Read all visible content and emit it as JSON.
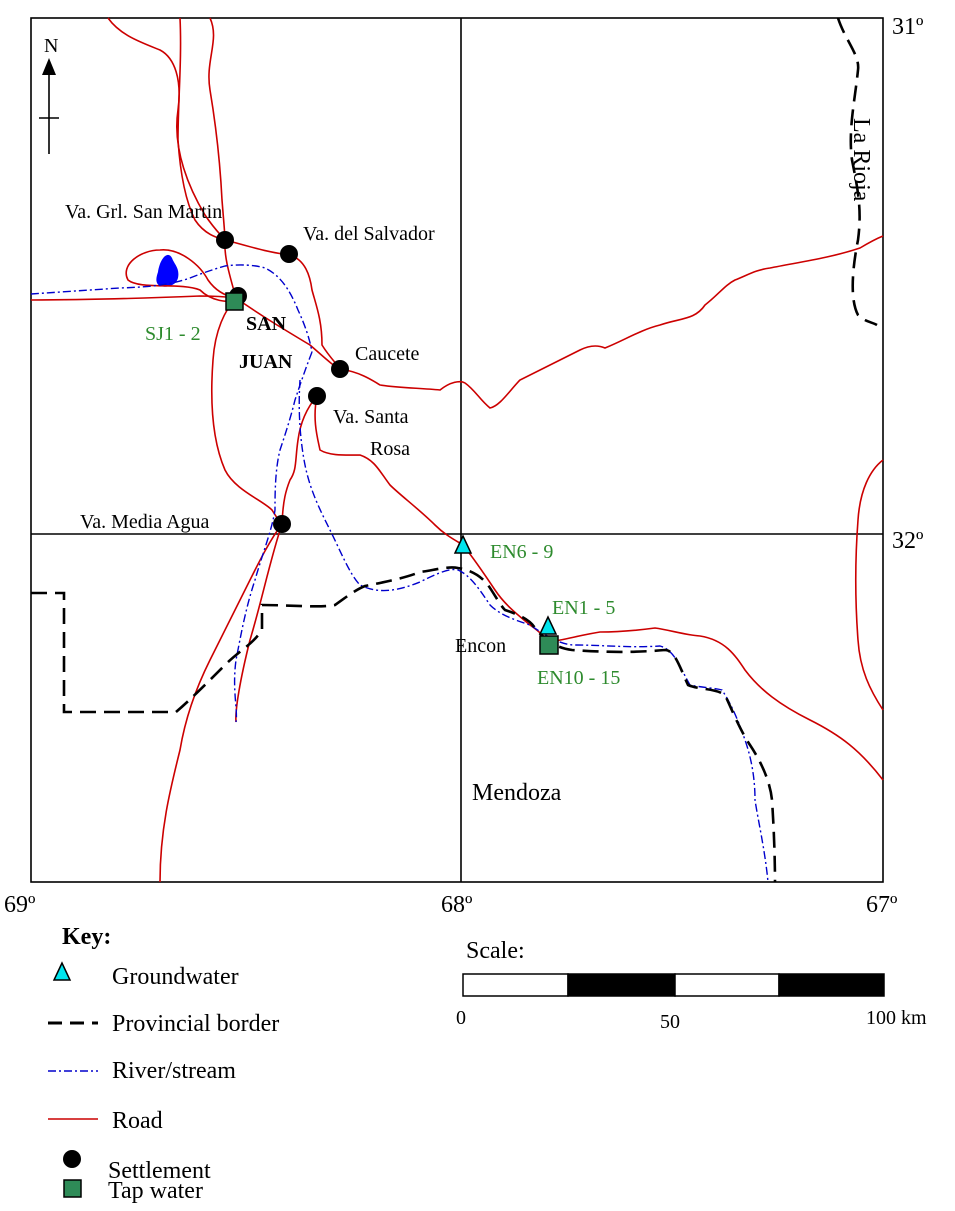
{
  "map": {
    "north_arrow": "N",
    "lat_labels": {
      "top": "31º",
      "mid": "32º"
    },
    "lon_labels": {
      "left": "69º",
      "mid": "68º",
      "right": "67º"
    },
    "province_labels": {
      "la_rioja": "La Rioja",
      "mendoza": "Mendoza"
    },
    "settlements": {
      "gral_san_martin": "Va. Grl. San Martin",
      "del_salvador": "Va. del Salvador",
      "caucete": "Caucete",
      "santa_rosa_1": "Va. Santa",
      "santa_rosa_2": "Rosa",
      "media_agua": "Va. Media Agua",
      "encon": "Encon",
      "san_juan_1": "SAN",
      "san_juan_2": "JUAN"
    },
    "sample_sites": {
      "sj": "SJ1 - 2",
      "en6": "EN6 - 9",
      "en1": "EN1 - 5",
      "en10": "EN10 - 15"
    },
    "colors": {
      "road": "#cc0000",
      "river": "#0000cc",
      "border": "#000000",
      "lake": "#0000ff",
      "groundwater": "#00e5ee",
      "tap_water": "#2e8b57",
      "sample_label": "#2e8b2e"
    }
  },
  "key": {
    "title": "Key:",
    "items": {
      "groundwater": "Groundwater",
      "border": "Provincial border",
      "river": "River/stream",
      "road": "Road",
      "settlement": "Settlement",
      "tap": "Tap water"
    }
  },
  "scale": {
    "title": "Scale:",
    "labels": {
      "start": "0",
      "mid": "50",
      "end": "100 km"
    }
  }
}
